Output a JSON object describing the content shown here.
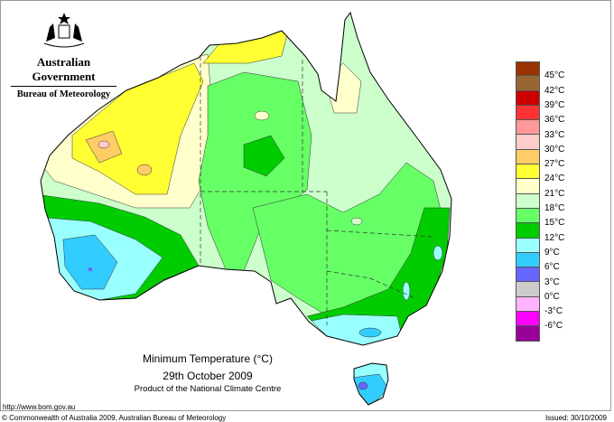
{
  "header": {
    "government": "Australian Government",
    "bureau": "Bureau of Meteorology"
  },
  "title": {
    "line1": "Minimum Temperature (°C)",
    "line2": "29th October 2009",
    "line3": "Product of the National Climate Centre"
  },
  "url": "http://www.bom.gov.au",
  "footer": {
    "copyright": "© Commonwealth of Australia 2009, Australian Bureau of Meteorology",
    "issued": "Issued: 30/10/2009"
  },
  "legend": {
    "colors": [
      "#993300",
      "#996633",
      "#cc0000",
      "#ff3333",
      "#ff9999",
      "#ffcccc",
      "#ffcc66",
      "#ffff33",
      "#ffffcc",
      "#ccffcc",
      "#66ff66",
      "#00cc00",
      "#99ffff",
      "#33ccff",
      "#6666ff",
      "#cccccc",
      "#ffb3ff",
      "#ff00ff",
      "#990099"
    ],
    "labels": [
      "45°C",
      "42°C",
      "39°C",
      "36°C",
      "33°C",
      "30°C",
      "27°C",
      "24°C",
      "21°C",
      "18°C",
      "15°C",
      "12°C",
      "9°C",
      "6°C",
      "3°C",
      "0°C",
      "-3°C",
      "-6°C"
    ]
  }
}
